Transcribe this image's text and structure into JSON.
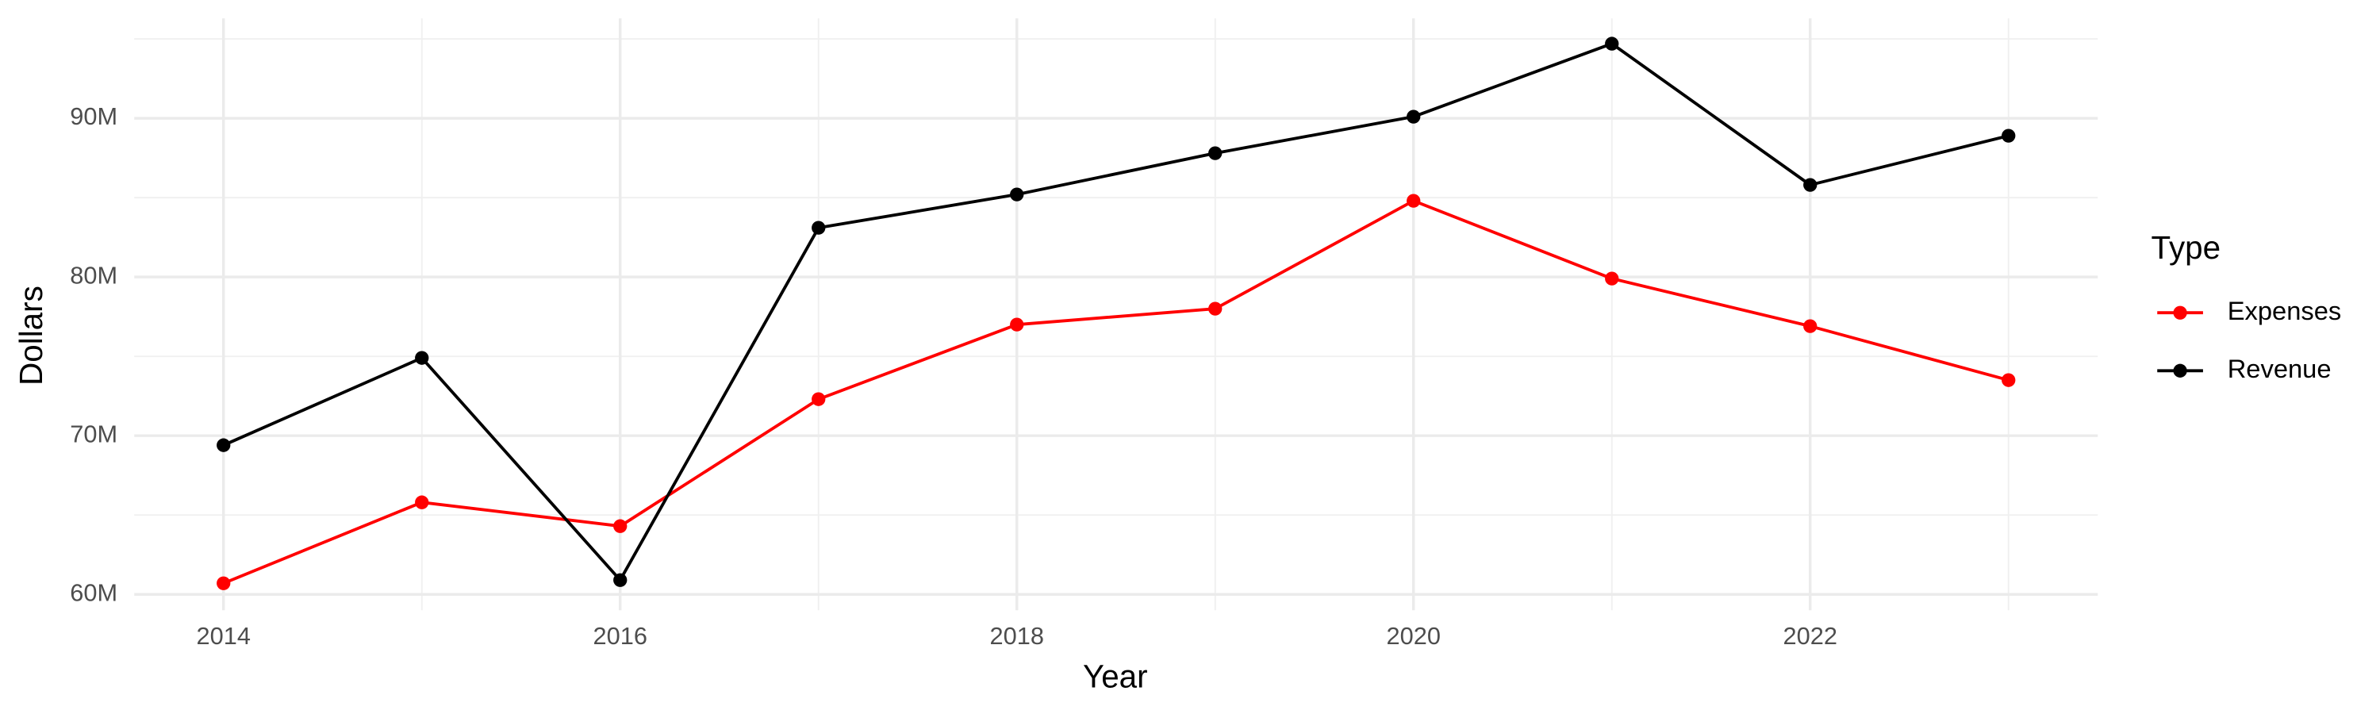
{
  "chart_data": {
    "type": "line",
    "x_label": "Year",
    "y_label": "Dollars",
    "legend_title": "Type",
    "legend_position": "right",
    "x": [
      2014,
      2015,
      2016,
      2017,
      2018,
      2019,
      2020,
      2021,
      2022,
      2023
    ],
    "series": [
      {
        "name": "Expenses",
        "color": "#ff0000",
        "values": [
          60700000,
          65800000,
          64300000,
          72300000,
          77000000,
          78000000,
          84800000,
          79900000,
          76900000,
          73500000
        ]
      },
      {
        "name": "Revenue",
        "color": "#000000",
        "values": [
          69400000,
          74900000,
          60900000,
          83100000,
          85200000,
          87800000,
          90100000,
          94700000,
          85800000,
          88900000
        ]
      }
    ],
    "xlim": [
      2013.55,
      2023.45
    ],
    "xticks": [
      2014,
      2016,
      2018,
      2020,
      2022
    ],
    "ylim": [
      59000000,
      96300000
    ],
    "yticks": [
      {
        "value": 60000000,
        "label": "60M"
      },
      {
        "value": 70000000,
        "label": "70M"
      },
      {
        "value": 80000000,
        "label": "80M"
      },
      {
        "value": 90000000,
        "label": "90M"
      }
    ],
    "grid": true
  }
}
